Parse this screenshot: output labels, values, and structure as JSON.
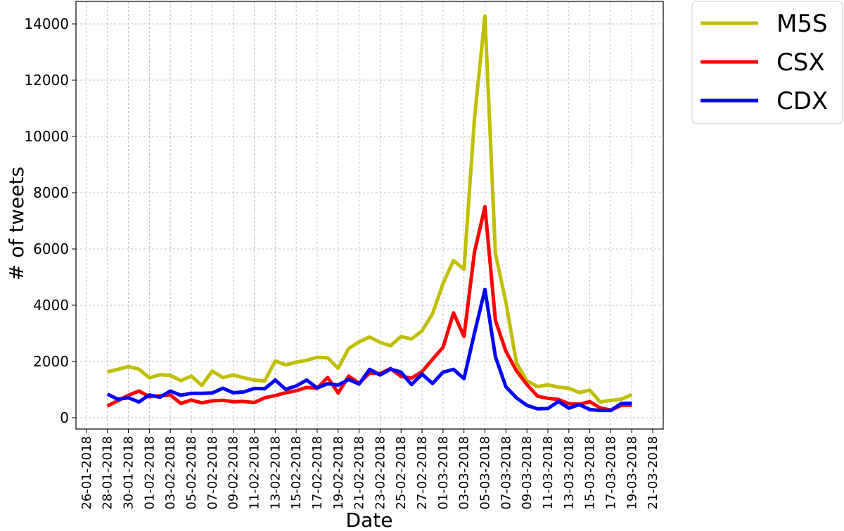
{
  "chart_data": {
    "type": "line",
    "xlabel": "Date",
    "ylabel": "# of tweets",
    "ylim": [
      -400,
      14800
    ],
    "xlim": [
      "25-01-2018",
      "22-03-2018"
    ],
    "grid": true,
    "legend_position": "outside-top-right",
    "x_ticks": [
      "26-01-2018",
      "28-01-2018",
      "30-01-2018",
      "01-02-2018",
      "03-02-2018",
      "05-02-2018",
      "07-02-2018",
      "09-02-2018",
      "11-02-2018",
      "13-02-2018",
      "15-02-2018",
      "17-02-2018",
      "19-02-2018",
      "21-02-2018",
      "23-02-2018",
      "25-02-2018",
      "27-02-2018",
      "01-03-2018",
      "03-03-2018",
      "05-03-2018",
      "07-03-2018",
      "09-03-2018",
      "11-03-2018",
      "13-03-2018",
      "15-03-2018",
      "17-03-2018",
      "19-03-2018",
      "21-03-2018"
    ],
    "y_ticks": [
      0,
      2000,
      4000,
      6000,
      8000,
      10000,
      12000,
      14000
    ],
    "x_start": "28-01-2018",
    "x_end": "19-03-2018",
    "series": [
      {
        "name": "M5S",
        "color": "#bfbf00",
        "values": [
          1630,
          1720,
          1820,
          1730,
          1420,
          1530,
          1510,
          1320,
          1480,
          1150,
          1660,
          1430,
          1520,
          1420,
          1340,
          1310,
          2020,
          1880,
          1980,
          2040,
          2150,
          2130,
          1760,
          2460,
          2700,
          2870,
          2680,
          2560,
          2890,
          2800,
          3090,
          3700,
          4770,
          5590,
          5280,
          10640,
          14280,
          5840,
          4100,
          1950,
          1310,
          1110,
          1170,
          1090,
          1050,
          900,
          980,
          560,
          620,
          660,
          820
        ]
      },
      {
        "name": "CSX",
        "color": "#ff0000",
        "values": [
          420,
          610,
          800,
          950,
          750,
          780,
          810,
          510,
          630,
          530,
          600,
          620,
          570,
          580,
          540,
          710,
          790,
          890,
          960,
          1080,
          1050,
          1430,
          880,
          1480,
          1230,
          1590,
          1570,
          1750,
          1470,
          1410,
          1640,
          2080,
          2500,
          3730,
          2890,
          5890,
          7500,
          3460,
          2360,
          1670,
          1180,
          770,
          690,
          650,
          500,
          480,
          570,
          350,
          270,
          440,
          440
        ]
      },
      {
        "name": "CDX",
        "color": "#0000ff",
        "values": [
          840,
          660,
          710,
          560,
          810,
          730,
          950,
          800,
          870,
          870,
          880,
          1050,
          890,
          920,
          1040,
          1030,
          1340,
          1010,
          1130,
          1340,
          1060,
          1210,
          1160,
          1360,
          1200,
          1720,
          1520,
          1730,
          1620,
          1180,
          1550,
          1220,
          1620,
          1720,
          1390,
          3010,
          4560,
          2170,
          1100,
          710,
          440,
          320,
          330,
          580,
          340,
          470,
          290,
          260,
          260,
          510,
          520
        ]
      }
    ]
  }
}
